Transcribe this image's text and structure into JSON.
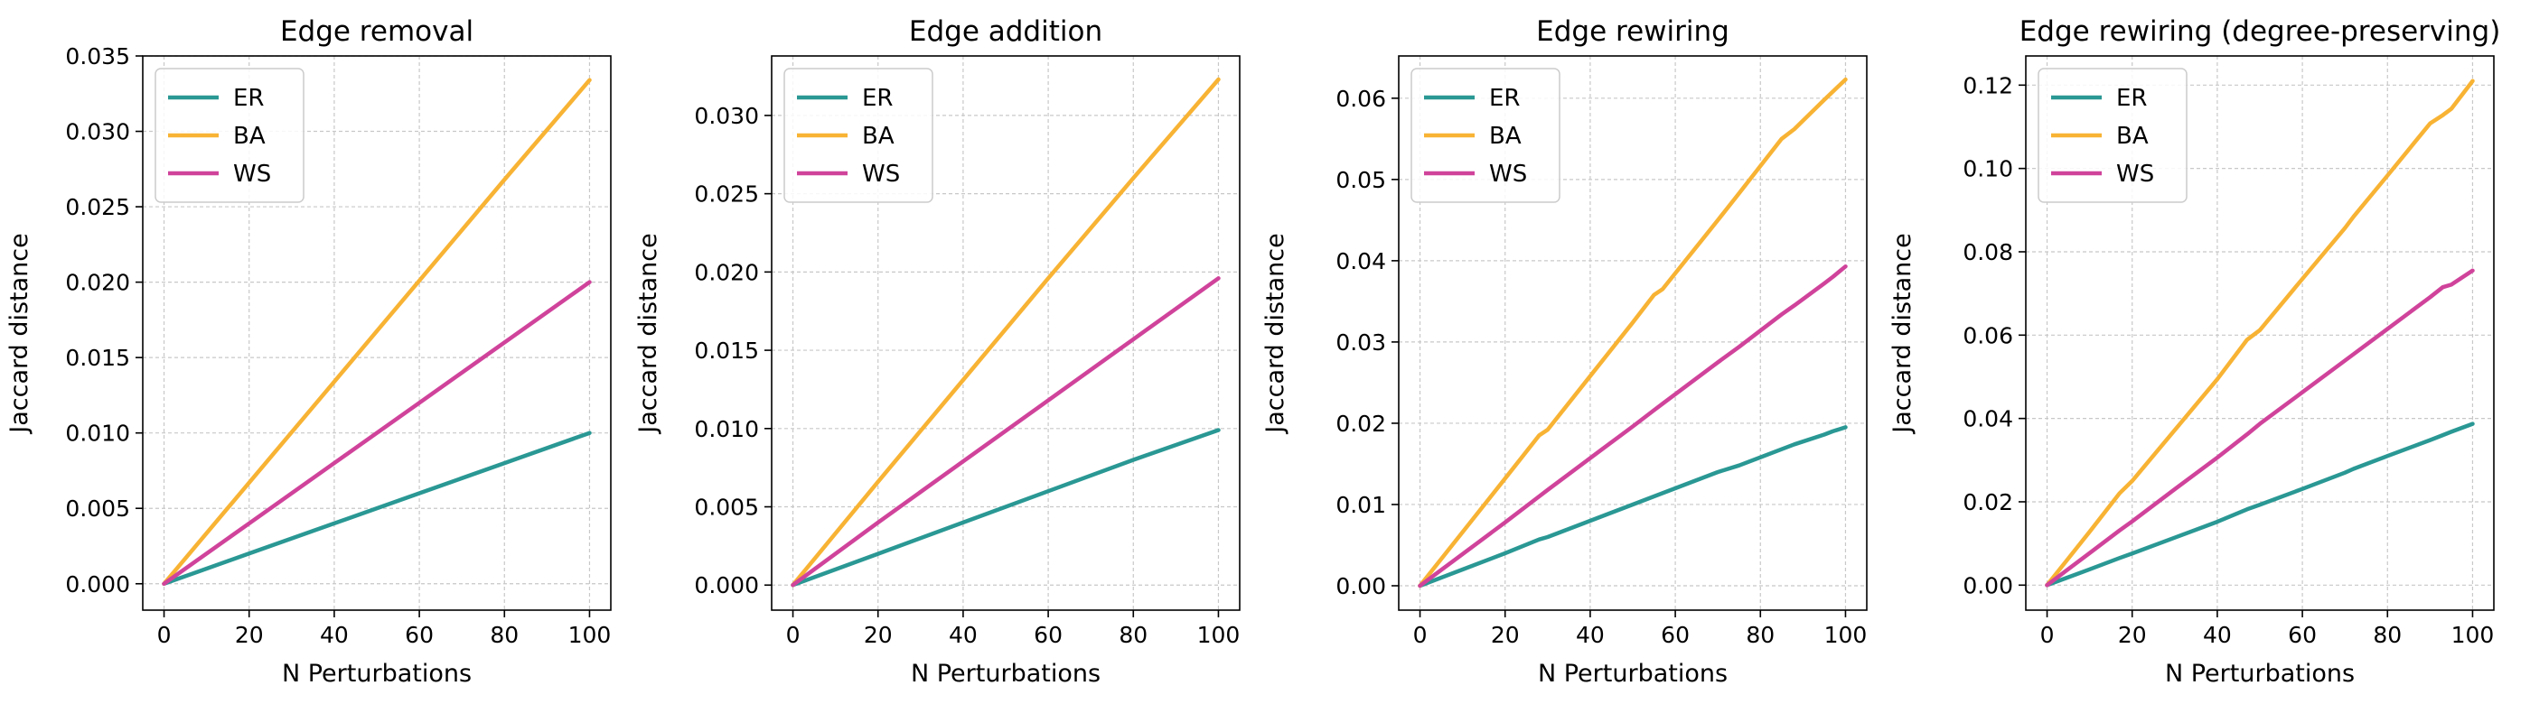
{
  "colors": {
    "ER": "#2a9894",
    "BA": "#f8b334",
    "WS": "#d0439b"
  },
  "chart_data": [
    {
      "type": "line",
      "title": "Edge removal",
      "xlabel": "N Perturbations",
      "ylabel": "Jaccard distance",
      "xlim": [
        -5,
        105
      ],
      "ylim": [
        -0.00175,
        0.035
      ],
      "xticks": [
        0,
        20,
        40,
        60,
        80,
        100
      ],
      "yticks": [
        0.0,
        0.005,
        0.01,
        0.015,
        0.02,
        0.025,
        0.03,
        0.035
      ],
      "ytick_labels": [
        "0.000",
        "0.005",
        "0.010",
        "0.015",
        "0.020",
        "0.025",
        "0.030",
        "0.035"
      ],
      "grid": true,
      "legend": "top-left",
      "x": [
        0,
        20,
        40,
        60,
        80,
        100
      ],
      "series": [
        {
          "name": "ER",
          "values": [
            0.0,
            0.002,
            0.004,
            0.006,
            0.008,
            0.01
          ]
        },
        {
          "name": "BA",
          "values": [
            0.0,
            0.0067,
            0.0134,
            0.0201,
            0.0268,
            0.0334
          ]
        },
        {
          "name": "WS",
          "values": [
            0.0,
            0.004,
            0.008,
            0.012,
            0.016,
            0.02
          ]
        }
      ]
    },
    {
      "type": "line",
      "title": "Edge addition",
      "xlabel": "N Perturbations",
      "ylabel": "Jaccard distance",
      "xlim": [
        -5,
        105
      ],
      "ylim": [
        -0.0016,
        0.0338
      ],
      "xticks": [
        0,
        20,
        40,
        60,
        80,
        100
      ],
      "yticks": [
        0.0,
        0.005,
        0.01,
        0.015,
        0.02,
        0.025,
        0.03
      ],
      "ytick_labels": [
        "0.000",
        "0.005",
        "0.010",
        "0.015",
        "0.020",
        "0.025",
        "0.030"
      ],
      "grid": true,
      "legend": "top-left",
      "x": [
        0,
        20,
        40,
        60,
        80,
        100
      ],
      "series": [
        {
          "name": "ER",
          "values": [
            0.0,
            0.002,
            0.004,
            0.006,
            0.008,
            0.0099
          ]
        },
        {
          "name": "BA",
          "values": [
            0.0,
            0.0066,
            0.0131,
            0.0196,
            0.026,
            0.0323
          ]
        },
        {
          "name": "WS",
          "values": [
            0.0,
            0.004,
            0.0079,
            0.0118,
            0.0157,
            0.0196
          ]
        }
      ]
    },
    {
      "type": "line",
      "title": "Edge rewiring",
      "xlabel": "N Perturbations",
      "ylabel": "Jaccard distance",
      "xlim": [
        -5,
        105
      ],
      "ylim": [
        -0.003,
        0.0652
      ],
      "xticks": [
        0,
        20,
        40,
        60,
        80,
        100
      ],
      "yticks": [
        0.0,
        0.01,
        0.02,
        0.03,
        0.04,
        0.05,
        0.06
      ],
      "ytick_labels": [
        "0.00",
        "0.01",
        "0.02",
        "0.03",
        "0.04",
        "0.05",
        "0.06"
      ],
      "grid": true,
      "legend": "top-left",
      "x": [
        0,
        10,
        20,
        28,
        30,
        40,
        50,
        55,
        57,
        70,
        75,
        85,
        88,
        95,
        97,
        100
      ],
      "series": [
        {
          "name": "ER",
          "values": [
            0.0,
            0.002,
            0.004,
            0.0057,
            0.006,
            0.008,
            0.01,
            0.011,
            0.0114,
            0.014,
            0.0148,
            0.0168,
            0.0174,
            0.0186,
            0.019,
            0.0195
          ]
        },
        {
          "name": "BA",
          "values": [
            0.0,
            0.0066,
            0.0132,
            0.0185,
            0.0192,
            0.0258,
            0.0324,
            0.0358,
            0.0365,
            0.045,
            0.0483,
            0.055,
            0.0562,
            0.0598,
            0.0608,
            0.0623
          ]
        },
        {
          "name": "WS",
          "values": [
            0.0,
            0.0039,
            0.0078,
            0.011,
            0.0118,
            0.0157,
            0.0196,
            0.0216,
            0.0224,
            0.0275,
            0.0294,
            0.0334,
            0.0345,
            0.0372,
            0.038,
            0.0393
          ]
        }
      ]
    },
    {
      "type": "line",
      "title": "Edge rewiring (degree-preserving)",
      "xlabel": "N Perturbations",
      "ylabel": "Jaccard distance",
      "xlim": [
        -5,
        105
      ],
      "ylim": [
        -0.006,
        0.127
      ],
      "xticks": [
        0,
        20,
        40,
        60,
        80,
        100
      ],
      "yticks": [
        0.0,
        0.02,
        0.04,
        0.06,
        0.08,
        0.1,
        0.12
      ],
      "ytick_labels": [
        "0.00",
        "0.02",
        "0.04",
        "0.06",
        "0.08",
        "0.10",
        "0.12"
      ],
      "grid": true,
      "legend": "top-left",
      "x": [
        0,
        10,
        17,
        20,
        30,
        40,
        47,
        50,
        60,
        70,
        72,
        80,
        90,
        93,
        95,
        100
      ],
      "series": [
        {
          "name": "ER",
          "values": [
            0.0,
            0.0038,
            0.0065,
            0.0076,
            0.0114,
            0.0152,
            0.0182,
            0.0193,
            0.0231,
            0.027,
            0.0279,
            0.031,
            0.0348,
            0.036,
            0.0368,
            0.0387
          ]
        },
        {
          "name": "BA",
          "values": [
            0.0,
            0.0128,
            0.022,
            0.025,
            0.0372,
            0.0494,
            0.0589,
            0.0612,
            0.0735,
            0.0857,
            0.0884,
            0.0983,
            0.1108,
            0.1128,
            0.1143,
            0.121
          ]
        },
        {
          "name": "WS",
          "values": [
            0.0,
            0.0077,
            0.0131,
            0.0153,
            0.023,
            0.0306,
            0.0362,
            0.0387,
            0.0463,
            0.0539,
            0.0554,
            0.0615,
            0.0691,
            0.0715,
            0.0721,
            0.0755
          ]
        }
      ]
    }
  ]
}
